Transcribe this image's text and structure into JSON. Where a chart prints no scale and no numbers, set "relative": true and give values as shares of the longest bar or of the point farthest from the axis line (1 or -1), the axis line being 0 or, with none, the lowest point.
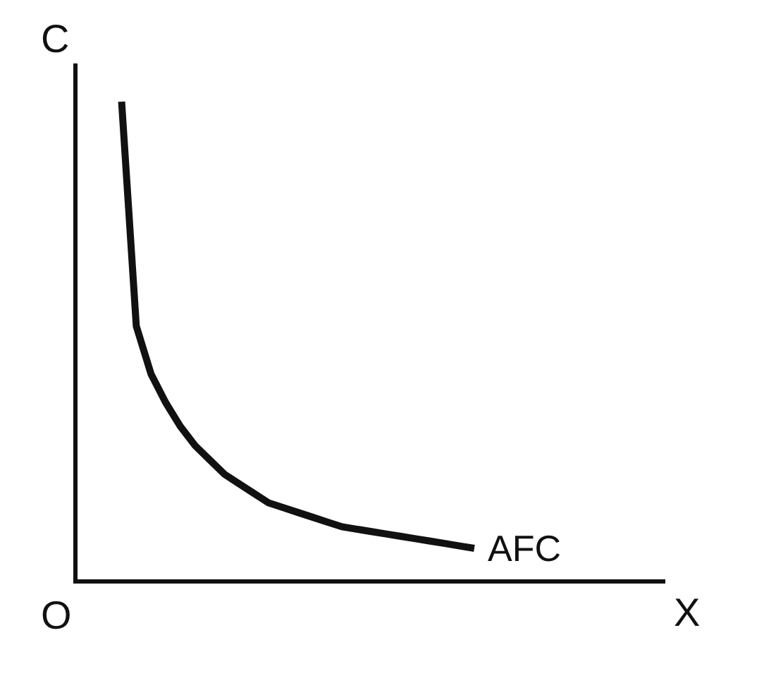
{
  "chart_data": {
    "type": "line",
    "xlabel": "X",
    "ylabel": "C",
    "relative": true,
    "grid": false,
    "legend": false,
    "marker": "none",
    "line_style": "solid",
    "annotations": [
      "O"
    ],
    "categories": [
      null,
      null,
      null,
      null,
      null,
      null,
      null,
      null,
      null,
      null,
      null,
      null,
      null,
      null,
      null,
      null,
      null,
      null,
      null,
      null,
      null,
      null,
      null,
      null,
      null
    ],
    "series": [
      {
        "name": "AFC",
        "color": "#111111",
        "values": [
          1.0,
          0.53,
          0.43,
          0.37,
          0.32,
          0.28,
          0.25,
          0.22,
          0.2,
          0.18,
          0.16,
          0.15,
          0.14,
          0.13,
          0.12,
          0.11,
          0.105,
          0.1,
          0.095,
          0.09,
          0.085,
          0.08,
          0.075,
          0.07,
          0.065
        ]
      }
    ]
  }
}
